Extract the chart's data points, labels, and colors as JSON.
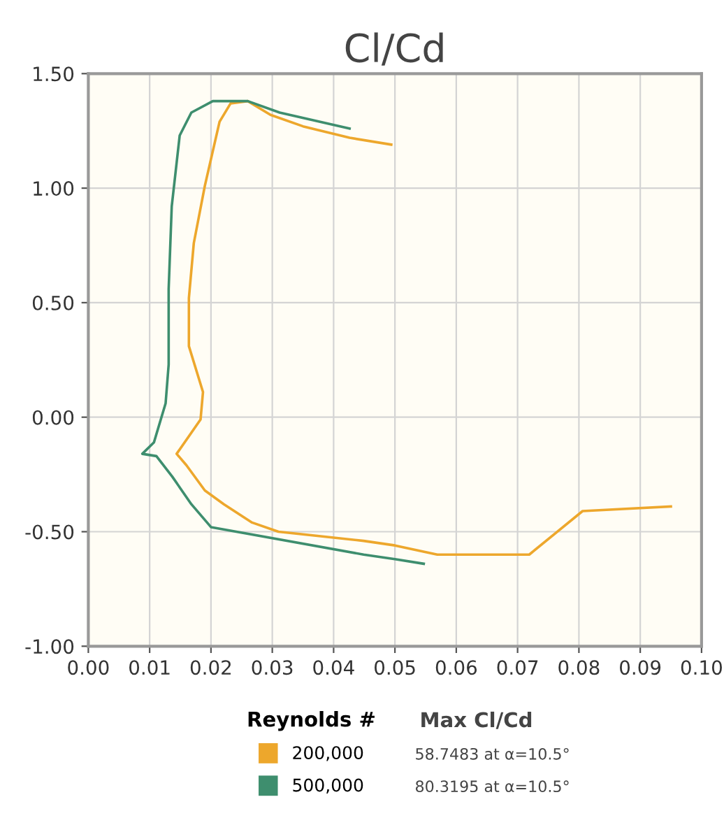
{
  "chart_data": {
    "type": "line",
    "title": "Cl/Cd",
    "legend_title": "Reynolds #",
    "legend": "bottom",
    "grid": true,
    "marker": "none",
    "line_style": "solid",
    "xlim": [
      0,
      0.1
    ],
    "xticks": [
      {
        "value": 0,
        "label": "0.00"
      },
      {
        "value": 0.01,
        "label": "0.01"
      },
      {
        "value": 0.02,
        "label": "0.02"
      },
      {
        "value": 0.03,
        "label": "0.03"
      },
      {
        "value": 0.04,
        "label": "0.04"
      },
      {
        "value": 0.05,
        "label": "0.05"
      },
      {
        "value": 0.06,
        "label": "0.06"
      },
      {
        "value": 0.07,
        "label": "0.07"
      },
      {
        "value": 0.08,
        "label": "0.08"
      },
      {
        "value": 0.09,
        "label": "0.09"
      },
      {
        "value": 0.1,
        "label": "0.10"
      }
    ],
    "ylim": [
      -1,
      1.5
    ],
    "yticks": [
      {
        "value": -1,
        "label": "-1.00"
      },
      {
        "value": -0.5,
        "label": "-0.50"
      },
      {
        "value": 0,
        "label": "0.00"
      },
      {
        "value": 0.5,
        "label": "0.50"
      },
      {
        "value": 1,
        "label": "1.00"
      },
      {
        "value": 1.5,
        "label": "1.50"
      }
    ],
    "annotations": [
      "Max Cl/Cd",
      "58.7483 at α=10.5°",
      "80.3195 at α=10.5°"
    ],
    "series": [
      {
        "name": "200,000",
        "color": "#eda72c",
        "x": [
          0.095,
          0.0806,
          0.0719,
          0.0569,
          0.05,
          0.0449,
          0.031,
          0.0267,
          0.0221,
          0.019,
          0.016,
          0.0144,
          0.0183,
          0.0187,
          0.0164,
          0.0164,
          0.0172,
          0.019,
          0.0214,
          0.0232,
          0.026,
          0.0297,
          0.035,
          0.0426,
          0.0494
        ],
        "values": [
          -0.39,
          -0.41,
          -0.6,
          -0.6,
          -0.56,
          -0.54,
          -0.5,
          -0.46,
          -0.38,
          -0.32,
          -0.21,
          -0.16,
          -0.01,
          0.11,
          0.31,
          0.52,
          0.76,
          1.01,
          1.29,
          1.37,
          1.38,
          1.32,
          1.27,
          1.22,
          1.19
        ]
      },
      {
        "name": "500,000",
        "color": "#3e8e6e",
        "x": [
          0.0547,
          0.05,
          0.0449,
          0.02,
          0.0168,
          0.0137,
          0.0111,
          0.0088,
          0.0107,
          0.0126,
          0.0131,
          0.0131,
          0.0136,
          0.0149,
          0.0168,
          0.0203,
          0.026,
          0.0312,
          0.0426
        ],
        "values": [
          -0.64,
          -0.62,
          -0.6,
          -0.48,
          -0.38,
          -0.26,
          -0.17,
          -0.16,
          -0.11,
          0.06,
          0.23,
          0.56,
          0.92,
          1.23,
          1.33,
          1.38,
          1.38,
          1.33,
          1.26
        ]
      }
    ]
  }
}
